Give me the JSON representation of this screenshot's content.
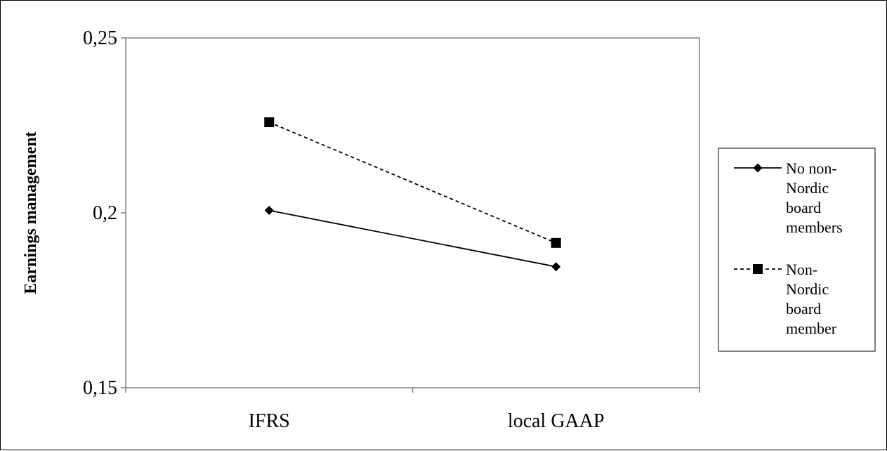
{
  "chart_data": {
    "type": "line",
    "title": "",
    "xlabel": "",
    "ylabel": "Earnings management",
    "categories": [
      "IFRS",
      "local GAAP"
    ],
    "yticks": [
      "0,15",
      "0,2",
      "0,25"
    ],
    "ylim": [
      0.15,
      0.25
    ],
    "grid": false,
    "legend_position": "right",
    "series": [
      {
        "name": "No non-Nordic board members",
        "legend_lines": [
          "No non-",
          "Nordic",
          "board",
          "members"
        ],
        "values": [
          0.2007,
          0.1846
        ],
        "line_style": "solid",
        "marker": "diamond",
        "color": "#000000"
      },
      {
        "name": "Non-Nordic board member",
        "legend_lines": [
          "Non-",
          "Nordic",
          "board",
          "member"
        ],
        "values": [
          0.2259,
          0.1914
        ],
        "line_style": "dashed",
        "marker": "square",
        "color": "#000000"
      }
    ]
  }
}
